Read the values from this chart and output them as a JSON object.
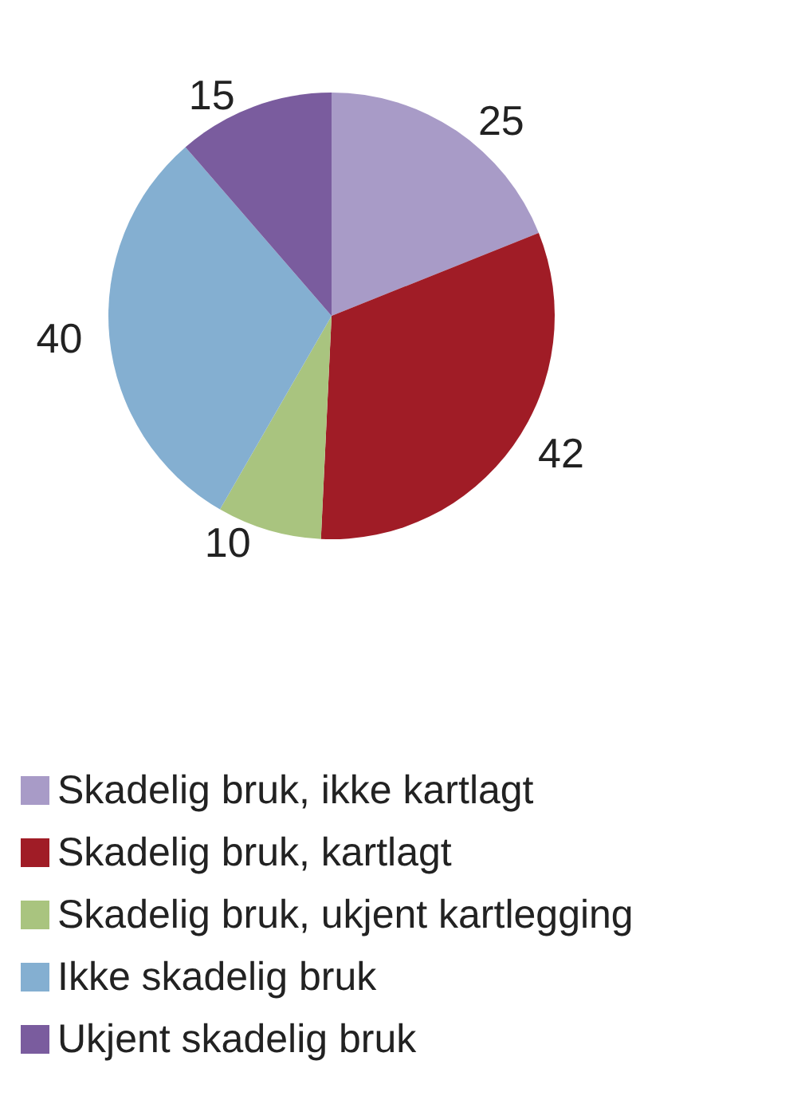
{
  "chart_data": {
    "type": "pie",
    "categories": [
      "Skadelig bruk, ikke kartlagt",
      "Skadelig bruk, kartlagt",
      "Skadelig bruk, ukjent kartlegging",
      "Ikke skadelig bruk",
      "Ukjent skadelig bruk"
    ],
    "values": [
      25,
      42,
      10,
      40,
      15
    ],
    "colors": [
      "#a89bc7",
      "#a01c26",
      "#a9c47f",
      "#84afd1",
      "#7a5c9e"
    ],
    "data_labels": true,
    "legend": "bottom"
  }
}
